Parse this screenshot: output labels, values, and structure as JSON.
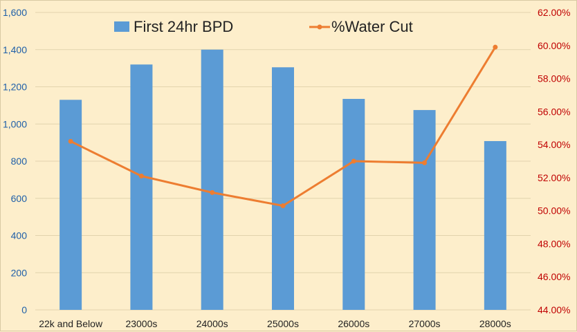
{
  "chart_data": {
    "type": "bar+line",
    "categories": [
      "22k and Below",
      "23000s",
      "24000s",
      "25000s",
      "26000s",
      "27000s",
      "28000s"
    ],
    "series": [
      {
        "name": "First 24hr BPD",
        "type": "bar",
        "axis": "left",
        "color": "#5b9bd5",
        "values": [
          1130,
          1320,
          1400,
          1305,
          1135,
          1075,
          908
        ]
      },
      {
        "name": "%Water Cut",
        "type": "line",
        "axis": "right",
        "color": "#ed7d31",
        "values": [
          54.2,
          52.1,
          51.1,
          50.3,
          53.0,
          52.9,
          59.9
        ]
      }
    ],
    "left_axis": {
      "min": 0,
      "max": 1600,
      "step": 200,
      "tick_labels": [
        "0",
        "200",
        "400",
        "600",
        "800",
        "1,000",
        "1,200",
        "1,400",
        "1,600"
      ]
    },
    "right_axis": {
      "min": 44,
      "max": 62,
      "step": 2,
      "tick_labels": [
        "44.00%",
        "46.00%",
        "48.00%",
        "50.00%",
        "52.00%",
        "54.00%",
        "56.00%",
        "58.00%",
        "60.00%",
        "62.00%"
      ]
    },
    "legend": {
      "position": "top",
      "entries": [
        "First 24hr BPD",
        "%Water Cut"
      ]
    },
    "grid": true,
    "left_tick_color": "#1f5fa8",
    "right_tick_color": "#c00000"
  }
}
